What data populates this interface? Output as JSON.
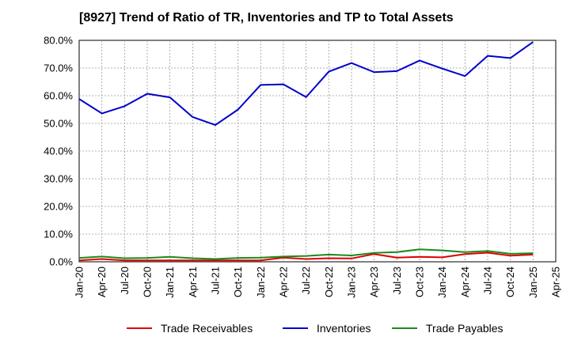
{
  "chart_data": {
    "type": "line",
    "title": "[8927]  Trend of Ratio of TR, Inventories and TP to Total Assets",
    "xlabel": "",
    "ylabel": "",
    "ylim": [
      0,
      80
    ],
    "y_ticks": [
      "0.0%",
      "10.0%",
      "20.0%",
      "30.0%",
      "40.0%",
      "50.0%",
      "60.0%",
      "70.0%",
      "80.0%"
    ],
    "x_ticks": [
      "Jan-20",
      "Apr-20",
      "Jul-20",
      "Oct-20",
      "Jan-21",
      "Apr-21",
      "Jul-21",
      "Oct-21",
      "Jan-22",
      "Apr-22",
      "Jul-22",
      "Oct-22",
      "Jan-23",
      "Apr-23",
      "Jul-23",
      "Oct-23",
      "Jan-24",
      "Apr-24",
      "Jul-24",
      "Oct-24",
      "Jan-25",
      "Apr-25"
    ],
    "categories": [
      "Jan-20",
      "Apr-20",
      "Jul-20",
      "Oct-20",
      "Jan-21",
      "Apr-21",
      "Jul-21",
      "Oct-21",
      "Jan-22",
      "Apr-22",
      "Jul-22",
      "Oct-22",
      "Jan-23",
      "Apr-23",
      "Jul-23",
      "Oct-23",
      "Jan-24",
      "Apr-24",
      "Jul-24",
      "Oct-24",
      "Jan-25"
    ],
    "grid": true,
    "legend": "bottom",
    "series": [
      {
        "name": "Trade Receivables",
        "color": "#e00000",
        "values": [
          0.5,
          1.0,
          0.5,
          0.5,
          0.5,
          0.5,
          0.5,
          0.5,
          0.5,
          1.5,
          1.0,
          1.3,
          1.2,
          2.8,
          1.5,
          1.8,
          1.6,
          2.8,
          3.3,
          2.2,
          2.6
        ]
      },
      {
        "name": "Inventories",
        "color": "#0000cc",
        "values": [
          58.8,
          53.6,
          56.2,
          60.7,
          59.4,
          52.3,
          49.4,
          55.0,
          63.9,
          64.1,
          59.5,
          68.7,
          71.8,
          68.5,
          68.9,
          72.7,
          69.8,
          67.1,
          74.4,
          73.6,
          79.4
        ]
      },
      {
        "name": "Trade Payables",
        "color": "#1a8a1a",
        "values": [
          1.4,
          1.9,
          1.3,
          1.4,
          1.8,
          1.3,
          1.0,
          1.4,
          1.5,
          1.9,
          2.1,
          2.6,
          2.3,
          3.2,
          3.5,
          4.5,
          4.1,
          3.5,
          3.9,
          2.9,
          3.1
        ]
      }
    ]
  }
}
